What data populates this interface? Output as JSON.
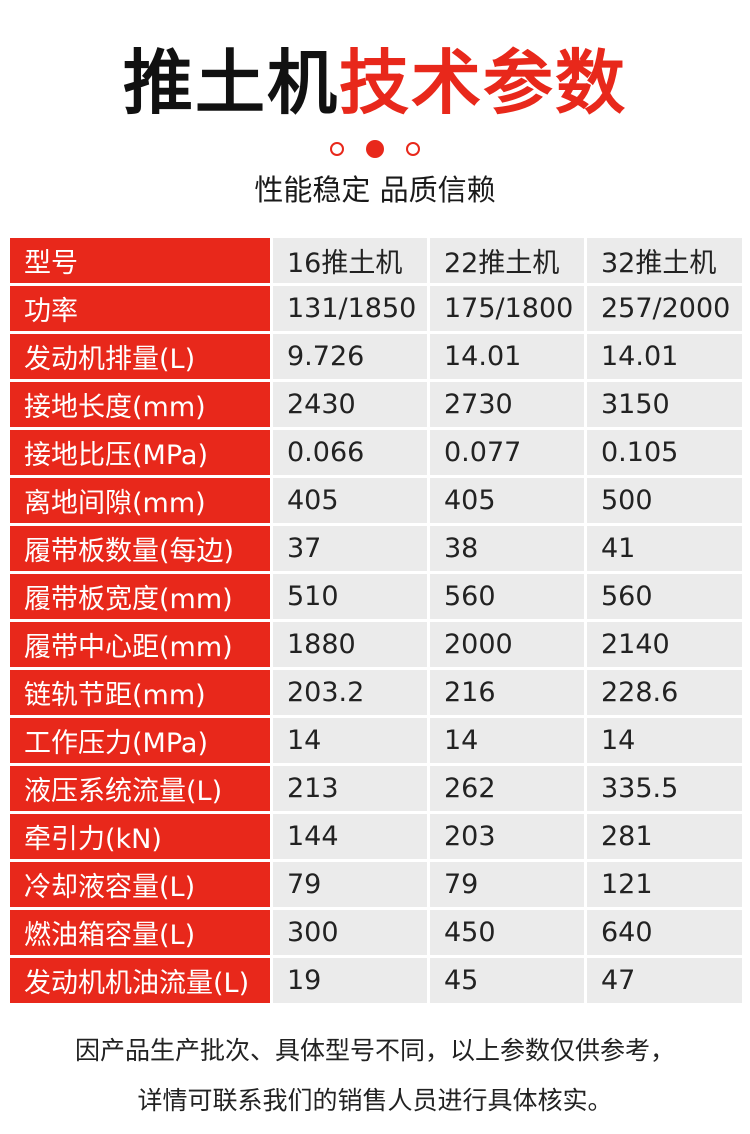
{
  "header": {
    "title_dark": "推土机",
    "title_red": "技术参数",
    "subtitle": "性能稳定 品质信赖"
  },
  "colors": {
    "accent": "#e8281b",
    "cell_bg": "#ebebeb"
  },
  "table": {
    "columns": [
      "型号",
      "16推土机",
      "22推土机",
      "32推土机"
    ],
    "rows": [
      [
        "功率",
        "131/1850",
        "175/1800",
        "257/2000"
      ],
      [
        "发动机排量(L)",
        "9.726",
        "14.01",
        "14.01"
      ],
      [
        "接地长度(mm)",
        "2430",
        "2730",
        "3150"
      ],
      [
        "接地比压(MPa)",
        "0.066",
        "0.077",
        "0.105"
      ],
      [
        "离地间隙(mm)",
        "405",
        "405",
        "500"
      ],
      [
        "履带板数量(每边)",
        "37",
        "38",
        "41"
      ],
      [
        "履带板宽度(mm)",
        "510",
        "560",
        "560"
      ],
      [
        "履带中心距(mm)",
        "1880",
        "2000",
        "2140"
      ],
      [
        "链轨节距(mm)",
        "203.2",
        "216",
        "228.6"
      ],
      [
        "工作压力(MPa)",
        "14",
        "14",
        "14"
      ],
      [
        "液压系统流量(L)",
        "213",
        "262",
        "335.5"
      ],
      [
        "牵引力(kN)",
        "144",
        "203",
        "281"
      ],
      [
        "冷却液容量(L)",
        "79",
        "79",
        "121"
      ],
      [
        "燃油箱容量(L)",
        "300",
        "450",
        "640"
      ],
      [
        "发动机机油流量(L)",
        "19",
        "45",
        "47"
      ]
    ]
  },
  "footer": {
    "line1": "因产品生产批次、具体型号不同，以上参数仅供参考，",
    "line2": "详情可联系我们的销售人员进行具体核实。"
  }
}
